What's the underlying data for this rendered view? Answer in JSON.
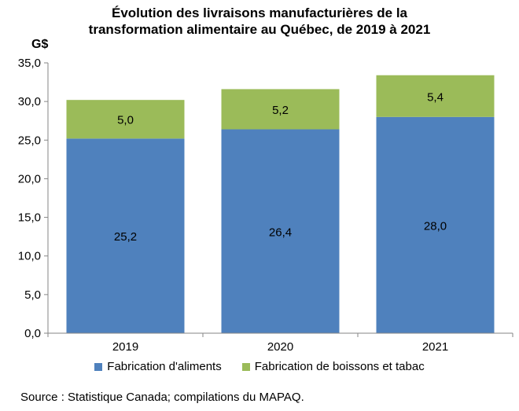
{
  "chart_data": {
    "type": "bar",
    "stacked": true,
    "title_line1": "Évolution des livraisons manufacturières de la",
    "title_line2": "transformation alimentaire au Québec, de 2019 à 2021",
    "unit_label": "G$",
    "categories": [
      "2019",
      "2020",
      "2021"
    ],
    "series": [
      {
        "name": "Fabrication d'aliments",
        "values": [
          25.2,
          26.4,
          28.0
        ],
        "value_labels": [
          "25,2",
          "26,4",
          "28,0"
        ],
        "color": "#4f81bd"
      },
      {
        "name": "Fabrication de boissons et tabac",
        "values": [
          5.0,
          5.2,
          5.4
        ],
        "value_labels": [
          "5,0",
          "5,2",
          "5,4"
        ],
        "color": "#9bbb59"
      }
    ],
    "ylim": [
      0,
      35
    ],
    "yticks": [
      0,
      5,
      10,
      15,
      20,
      25,
      30,
      35
    ],
    "ytick_labels": [
      "0,0",
      "5,0",
      "10,0",
      "15,0",
      "20,0",
      "25,0",
      "30,0",
      "35,0"
    ],
    "grid": false,
    "legend_position": "bottom"
  },
  "source_text": "Source : Statistique Canada; compilations du MAPAQ."
}
